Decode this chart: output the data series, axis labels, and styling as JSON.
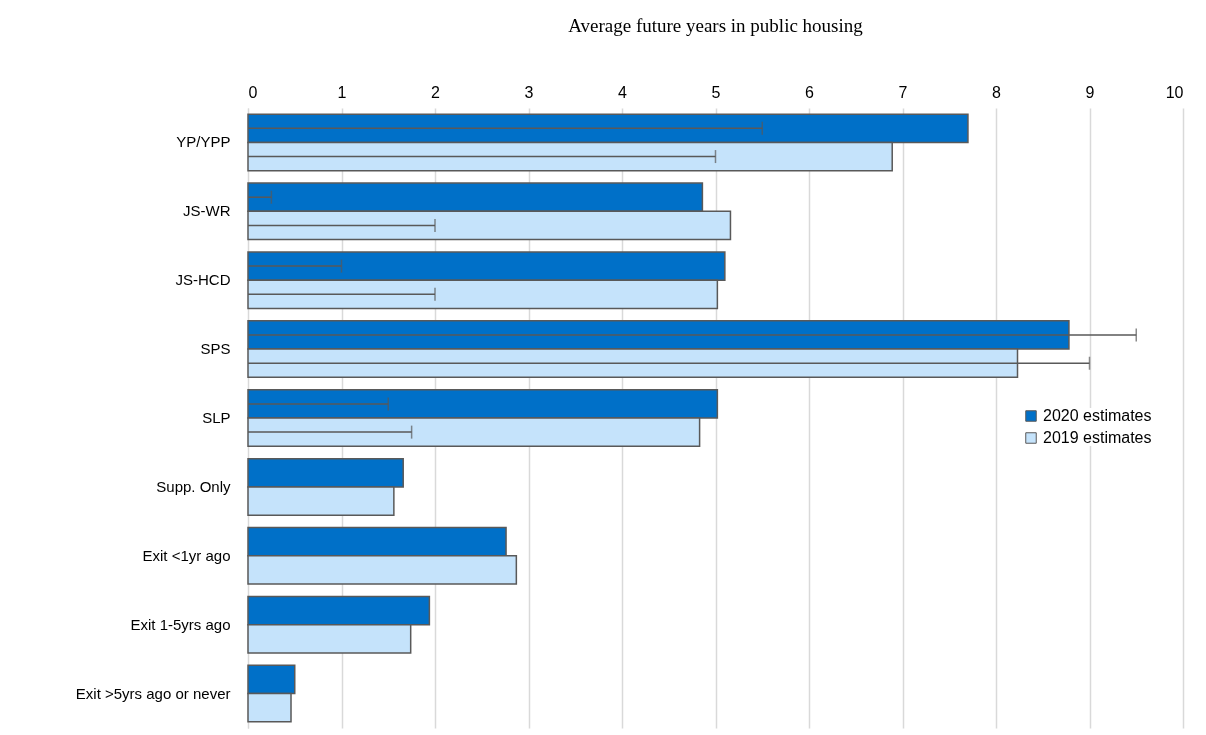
{
  "chart_data": {
    "type": "bar",
    "orientation": "horizontal",
    "title": "Average future years in public housing",
    "categories": [
      "YP/YPP",
      "JS-WR",
      "JS-HCD",
      "SPS",
      "SLP",
      "Supp. Only",
      "Exit <1yr ago",
      "Exit 1-5yrs ago",
      "Exit >5yrs ago or never"
    ],
    "series": [
      {
        "name": "2020 estimates",
        "color": "#0070c8",
        "values": [
          7.7,
          4.86,
          5.1,
          8.78,
          5.02,
          1.66,
          2.76,
          1.94,
          0.5
        ],
        "errors": [
          [
            0,
            5.5
          ],
          [
            0,
            0.25
          ],
          [
            0,
            1.0
          ],
          [
            0,
            9.5
          ],
          [
            0,
            1.5
          ],
          null,
          null,
          null,
          null
        ]
      },
      {
        "name": "2019 estimates",
        "color": "#c5e3fb",
        "values": [
          6.89,
          5.16,
          5.02,
          8.23,
          4.83,
          1.56,
          2.87,
          1.74,
          0.46
        ],
        "errors": [
          [
            0,
            5.0
          ],
          [
            0,
            2.0
          ],
          [
            0,
            2.0
          ],
          [
            0,
            9.0
          ],
          [
            0,
            1.75
          ],
          null,
          null,
          null,
          null
        ]
      }
    ],
    "xlim": [
      0,
      10
    ],
    "xticks": [
      0,
      1,
      2,
      3,
      4,
      5,
      6,
      7,
      8,
      9,
      10
    ],
    "grid": "x",
    "legend": "right"
  }
}
